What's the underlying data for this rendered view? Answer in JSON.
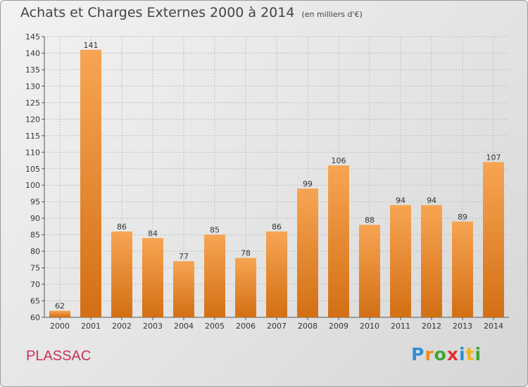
{
  "header": {
    "title": "Achats et Charges Externes 2000 à 2014",
    "subtitle": "(en milliers d'€)"
  },
  "footer": {
    "commune": "PLASSAC",
    "logo_letters": [
      "P",
      "r",
      "o",
      "x",
      "i",
      "t",
      "i"
    ],
    "logo_colors": [
      "#2e8fd6",
      "#f08a1c",
      "#3fa535",
      "#e2302e",
      "#2e8fd6",
      "#f0b51c",
      "#3fa535"
    ]
  },
  "colors": {
    "bar_light": "#f7a553",
    "bar_dark": "#d36f14",
    "grid": "#bfbfbf"
  },
  "chart_data": {
    "type": "bar",
    "title": "Achats et Charges Externes 2000 à 2014",
    "subtitle": "(en milliers d'€)",
    "categories": [
      "2000",
      "2001",
      "2002",
      "2003",
      "2004",
      "2005",
      "2006",
      "2007",
      "2008",
      "2009",
      "2010",
      "2011",
      "2012",
      "2013",
      "2014"
    ],
    "values": [
      62,
      141,
      86,
      84,
      77,
      85,
      78,
      86,
      99,
      106,
      88,
      94,
      94,
      89,
      107
    ],
    "ylim": [
      60,
      145
    ],
    "yticks": [
      60,
      65,
      70,
      75,
      80,
      85,
      90,
      95,
      100,
      105,
      110,
      115,
      120,
      125,
      130,
      135,
      140,
      145
    ],
    "grid": true,
    "xlabel": "",
    "ylabel": ""
  }
}
